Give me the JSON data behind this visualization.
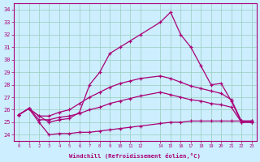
{
  "xlabel": "Windchill (Refroidissement éolien,°C)",
  "xlim": [
    -0.5,
    23.5
  ],
  "ylim": [
    23.5,
    34.5
  ],
  "yticks": [
    24,
    25,
    26,
    27,
    28,
    29,
    30,
    31,
    32,
    33,
    34
  ],
  "xtick_pos": [
    0,
    1,
    2,
    3,
    4,
    5,
    6,
    7,
    8,
    9,
    10,
    11,
    12,
    14,
    15,
    16,
    17,
    18,
    19,
    20,
    21,
    22,
    23
  ],
  "xtick_labels": [
    "0",
    "1",
    "2",
    "3",
    "4",
    "5",
    "6",
    "7",
    "8",
    "9",
    "10",
    "11",
    "12",
    "14",
    "15",
    "16",
    "17",
    "18",
    "19",
    "20",
    "21",
    "22",
    "23"
  ],
  "bg_color": "#cceeff",
  "line_color": "#aa0077",
  "grid_color": "#99ccbb",
  "series": [
    {
      "x": [
        0,
        1,
        2,
        3,
        4,
        5,
        6,
        7,
        8,
        9,
        10,
        11,
        12,
        14,
        15,
        16,
        17,
        18,
        19,
        20,
        21,
        22,
        23
      ],
      "y": [
        25.6,
        26.1,
        25.5,
        25.0,
        25.2,
        25.3,
        25.8,
        28.0,
        29.0,
        30.5,
        31.0,
        31.5,
        32.0,
        33.0,
        33.8,
        32.0,
        31.0,
        29.5,
        28.0,
        28.1,
        26.7,
        25.0,
        25.0
      ]
    },
    {
      "x": [
        0,
        1,
        2,
        3,
        4,
        5,
        6,
        7,
        8,
        9,
        10,
        11,
        12,
        14,
        15,
        16,
        17,
        18,
        19,
        20,
        21,
        22,
        23
      ],
      "y": [
        25.6,
        26.1,
        25.5,
        25.5,
        25.8,
        26.0,
        26.5,
        27.0,
        27.4,
        27.8,
        28.1,
        28.3,
        28.5,
        28.7,
        28.5,
        28.2,
        27.9,
        27.7,
        27.5,
        27.3,
        26.8,
        25.1,
        25.1
      ]
    },
    {
      "x": [
        0,
        1,
        2,
        3,
        4,
        5,
        6,
        7,
        8,
        9,
        10,
        11,
        12,
        14,
        15,
        16,
        17,
        18,
        19,
        20,
        21,
        22,
        23
      ],
      "y": [
        25.6,
        26.1,
        25.2,
        25.2,
        25.4,
        25.5,
        25.7,
        26.0,
        26.2,
        26.5,
        26.7,
        26.9,
        27.1,
        27.4,
        27.2,
        27.0,
        26.8,
        26.7,
        26.5,
        26.4,
        26.2,
        25.0,
        25.0
      ]
    },
    {
      "x": [
        0,
        1,
        2,
        3,
        4,
        5,
        6,
        7,
        8,
        9,
        10,
        11,
        12,
        14,
        15,
        16,
        17,
        18,
        19,
        20,
        21,
        22,
        23
      ],
      "y": [
        25.6,
        26.1,
        25.0,
        24.0,
        24.1,
        24.1,
        24.2,
        24.2,
        24.3,
        24.4,
        24.5,
        24.6,
        24.7,
        24.9,
        25.0,
        25.0,
        25.1,
        25.1,
        25.1,
        25.1,
        25.1,
        25.1,
        25.1
      ]
    }
  ]
}
